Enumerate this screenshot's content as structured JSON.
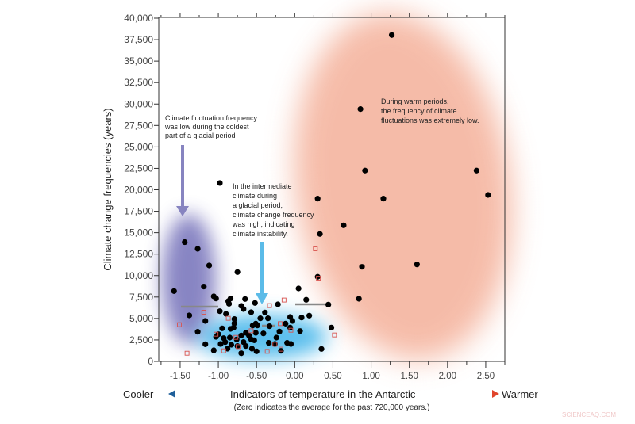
{
  "chart_data": {
    "type": "scatter",
    "title": "",
    "xlabel": "Indicators of temperature in the Antarctic",
    "xlabel_note": "(Zero indicates the average for the past 720,000 years.)",
    "xlabel_left": "Cooler",
    "xlabel_right": "Warmer",
    "ylabel": "Climate change frequencies (years)",
    "xlim": [
      -1.78,
      2.75
    ],
    "ylim": [
      0,
      40000
    ],
    "x_ticks": [
      "-1.50",
      "-1.00",
      "-0.50",
      "0.00",
      "0.50",
      "1.00",
      "1.50",
      "2.00",
      "2.50"
    ],
    "y_ticks": [
      "0",
      "2,500",
      "5,000",
      "7,500",
      "10,000",
      "12,500",
      "15,000",
      "17,500",
      "20,000",
      "22,500",
      "25,000",
      "27,500",
      "30,000",
      "32,500",
      "35,000",
      "37,500",
      "40,000"
    ],
    "grid": false,
    "colors": {
      "points": "#000000",
      "hollow": "#d9534f",
      "cold_region": "#7b78bd",
      "intermediate_region": "#3fb4ea",
      "warm_region": "#f4b09a",
      "cold_arrow": "#8784c0",
      "intermediate_arrow": "#5bbbe8",
      "cool_arrow": "#1f5f9a",
      "warm_arrow": "#e0452c"
    },
    "series": [
      {
        "marker": "filled-circle",
        "points": [
          [
            1.27,
            38040
          ],
          [
            0.86,
            29410
          ],
          [
            0.92,
            22240
          ],
          [
            2.38,
            22240
          ],
          [
            2.53,
            19400
          ],
          [
            0.3,
            18970
          ],
          [
            1.16,
            18970
          ],
          [
            0.64,
            15860
          ],
          [
            0.33,
            14850
          ],
          [
            1.6,
            11300
          ],
          [
            0.88,
            11020
          ],
          [
            0.3,
            9860
          ],
          [
            0.84,
            7300
          ],
          [
            0.44,
            6620
          ],
          [
            -0.98,
            20790
          ],
          [
            -1.44,
            13900
          ],
          [
            -1.27,
            13120
          ],
          [
            -1.12,
            11180
          ],
          [
            -0.75,
            10410
          ],
          [
            -1.19,
            8720
          ],
          [
            -1.58,
            8190
          ],
          [
            -1.06,
            7580
          ],
          [
            -1.03,
            7330
          ],
          [
            -0.87,
            7020
          ],
          [
            -0.84,
            7330
          ],
          [
            -0.65,
            7270
          ],
          [
            -0.52,
            6810
          ],
          [
            -0.7,
            6470
          ],
          [
            -0.67,
            6100
          ],
          [
            -0.86,
            6710
          ],
          [
            -0.98,
            5850
          ],
          [
            -0.9,
            5540
          ],
          [
            -0.57,
            5730
          ],
          [
            -0.39,
            5700
          ],
          [
            -1.38,
            5360
          ],
          [
            -1.17,
            4710
          ],
          [
            -0.79,
            4930
          ],
          [
            -1.27,
            3450
          ],
          [
            -0.45,
            5020
          ],
          [
            -0.35,
            5020
          ],
          [
            -0.51,
            4400
          ],
          [
            -0.55,
            4190
          ],
          [
            -0.49,
            4190
          ],
          [
            -0.33,
            4100
          ],
          [
            -0.22,
            6650
          ],
          [
            0.05,
            8500
          ],
          [
            0.15,
            7180
          ],
          [
            0.19,
            5330
          ],
          [
            0.09,
            5110
          ],
          [
            -0.06,
            5170
          ],
          [
            -0.03,
            4710
          ],
          [
            -0.12,
            4400
          ],
          [
            -0.06,
            3940
          ],
          [
            -0.2,
            3480
          ],
          [
            0.07,
            3540
          ],
          [
            -0.24,
            2770
          ],
          [
            -0.41,
            3260
          ],
          [
            -0.64,
            3330
          ],
          [
            -0.7,
            3020
          ],
          [
            -0.8,
            3940
          ],
          [
            -0.84,
            3790
          ],
          [
            -0.95,
            3850
          ],
          [
            -1.0,
            3170
          ],
          [
            -1.03,
            2860
          ],
          [
            -0.93,
            2710
          ],
          [
            -0.85,
            2770
          ],
          [
            -0.91,
            2250
          ],
          [
            -0.76,
            2560
          ],
          [
            -0.67,
            2250
          ],
          [
            -0.57,
            2560
          ],
          [
            -0.53,
            2460
          ],
          [
            -0.75,
            1790
          ],
          [
            -0.83,
            1940
          ],
          [
            -0.88,
            1480
          ],
          [
            -1.17,
            2000
          ],
          [
            -1.06,
            1290
          ],
          [
            -0.97,
            2030
          ],
          [
            -0.64,
            1790
          ],
          [
            -0.56,
            1480
          ],
          [
            -0.5,
            1170
          ],
          [
            -0.7,
            950
          ],
          [
            -0.34,
            2160
          ],
          [
            -0.26,
            2030
          ],
          [
            -0.18,
            1230
          ],
          [
            -0.1,
            2160
          ],
          [
            -0.05,
            2030
          ],
          [
            0.48,
            3940
          ],
          [
            0.35,
            1450
          ],
          [
            -0.79,
            4440
          ],
          [
            -0.6,
            3020
          ],
          [
            -0.51,
            3330
          ]
        ]
      },
      {
        "marker": "hollow-square",
        "points": [
          [
            0.27,
            13120
          ],
          [
            0.31,
            9700
          ],
          [
            -0.14,
            7150
          ],
          [
            -0.33,
            6500
          ],
          [
            -1.19,
            5730
          ],
          [
            -1.51,
            4280
          ],
          [
            -0.87,
            5020
          ],
          [
            -1.03,
            3170
          ],
          [
            -0.77,
            2800
          ],
          [
            -0.57,
            3570
          ],
          [
            -0.19,
            4400
          ],
          [
            -0.05,
            3630
          ],
          [
            0.52,
            3080
          ],
          [
            -1.41,
            950
          ],
          [
            -0.93,
            1230
          ],
          [
            -0.74,
            1720
          ],
          [
            -0.36,
            1170
          ],
          [
            -0.18,
            1420
          ],
          [
            -0.26,
            2000
          ]
        ]
      }
    ],
    "annotations": [
      {
        "lines": [
          "Climate fluctuation frequency",
          "was low during the coldest",
          "part of a glacial period"
        ]
      },
      {
        "lines": [
          "In the intermediate",
          "climate during",
          "a glacial period,",
          "climate change frequency",
          "was high, indicating",
          "climate instability."
        ]
      },
      {
        "lines": [
          "During warm periods,",
          "the frequency of climate",
          "fluctuations was extremely low."
        ]
      }
    ]
  },
  "watermark": "SCIENCEAQ.COM"
}
